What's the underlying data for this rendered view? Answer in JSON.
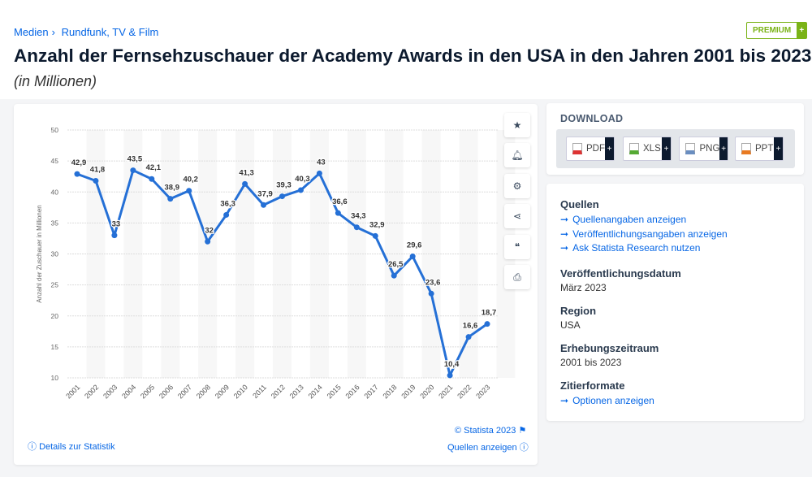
{
  "breadcrumb": [
    "Medien",
    "Rundfunk, TV & Film"
  ],
  "premium": {
    "label": "PREMIUM",
    "plus": "+"
  },
  "title": "Anzahl der Fernsehzuschauer der Academy Awards in den USA in den Jahren 2001 bis 2023",
  "subtitle": "(in Millionen)",
  "chart_data": {
    "type": "line",
    "title": "Anzahl der Fernsehzuschauer der Academy Awards in den USA in den Jahren 2001 bis 2023",
    "ylabel": "Anzahl der Zuschauer in Millionen",
    "xlabel": "",
    "ylim": [
      10,
      50
    ],
    "yticks": [
      10,
      15,
      20,
      25,
      30,
      35,
      40,
      45,
      50
    ],
    "categories": [
      "2001",
      "2002",
      "2003",
      "2004",
      "2005",
      "2006",
      "2007",
      "2008",
      "2009",
      "2010",
      "2011",
      "2012",
      "2013",
      "2014",
      "2015",
      "2016",
      "2017",
      "2018",
      "2019",
      "2020",
      "2021",
      "2022",
      "2023"
    ],
    "values": [
      42.9,
      41.8,
      33,
      43.5,
      42.1,
      38.9,
      40.2,
      32,
      36.3,
      41.3,
      37.9,
      39.3,
      40.3,
      43,
      36.6,
      34.3,
      32.9,
      26.5,
      29.6,
      23.6,
      10.4,
      16.6,
      18.7
    ],
    "labels": [
      "42,9",
      "41,8",
      "33",
      "43,5",
      "42,1",
      "38,9",
      "40,2",
      "32",
      "36,3",
      "41,3",
      "37,9",
      "39,3",
      "40,3",
      "43",
      "36,6",
      "34,3",
      "32,9",
      "26,5",
      "29,6",
      "23,6",
      "10,4",
      "16,6",
      "18,7"
    ],
    "color": "#2570d6",
    "grid": true
  },
  "chart_footer": {
    "copyright": "© Statista 2023",
    "details": "Details zur Statistik",
    "sources": "Quellen anzeigen"
  },
  "download": {
    "title": "DOWNLOAD",
    "formats": [
      "PDF",
      "XLS",
      "PNG",
      "PPT"
    ],
    "plus": "+"
  },
  "info": {
    "sources_title": "Quellen",
    "source_links": [
      "Quellenangaben anzeigen",
      "Veröffentlichungsangaben anzeigen",
      "Ask Statista Research nutzen"
    ],
    "pub_date_title": "Veröffentlichungsdatum",
    "pub_date": "März 2023",
    "region_title": "Region",
    "region": "USA",
    "period_title": "Erhebungszeitraum",
    "period": "2001 bis 2023",
    "cite_title": "Zitierformate",
    "cite_link": "Optionen anzeigen"
  }
}
